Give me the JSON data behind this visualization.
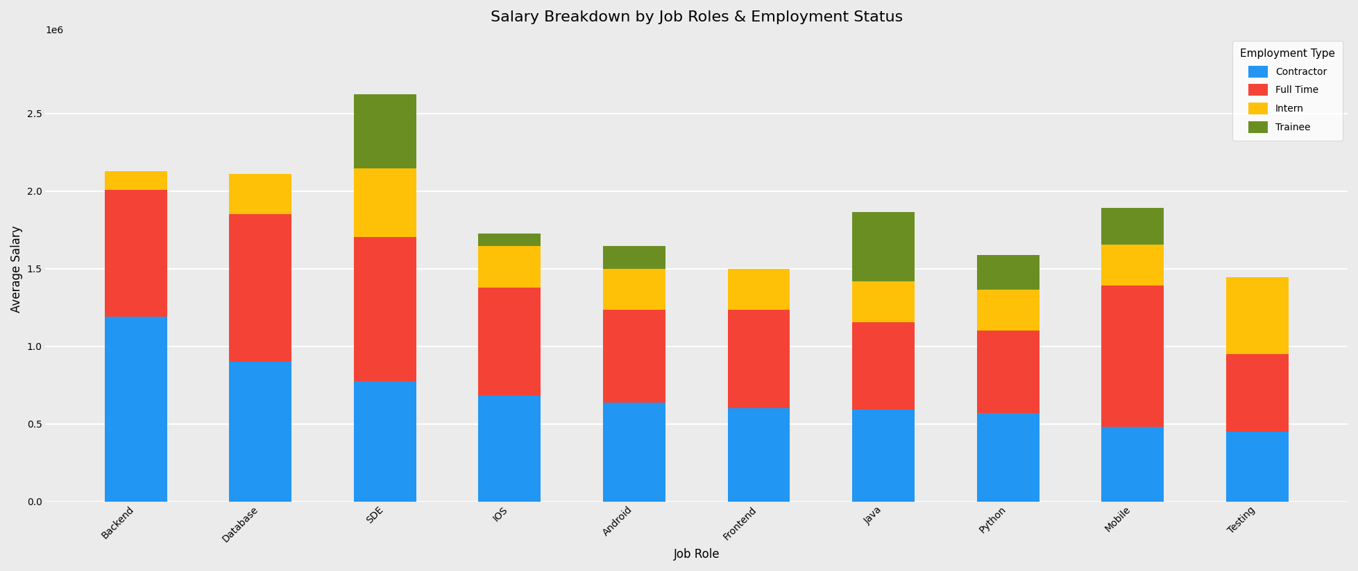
{
  "title": "Salary Breakdown by Job Roles & Employment Status",
  "xlabel": "Job Role",
  "ylabel": "Average Salary",
  "legend_title": "Employment Type",
  "categories": [
    "Backend",
    "Database",
    "SDE",
    "IOS",
    "Android",
    "Frontend",
    "Java",
    "Python",
    "Mobile",
    "Testing"
  ],
  "series": {
    "Contractor": [
      1190000,
      900000,
      775000,
      680000,
      635000,
      600000,
      590000,
      570000,
      480000,
      450000
    ],
    "Full Time": [
      820000,
      950000,
      930000,
      700000,
      600000,
      635000,
      565000,
      530000,
      910000,
      500000
    ],
    "Intern": [
      120000,
      260000,
      440000,
      265000,
      265000,
      265000,
      265000,
      265000,
      265000,
      495000
    ],
    "Trainee": [
      0,
      0,
      480000,
      80000,
      145000,
      0,
      445000,
      225000,
      235000,
      0
    ]
  },
  "colors": {
    "Contractor": "#2196F3",
    "Full Time": "#F44336",
    "Intern": "#FFC107",
    "Trainee": "#6B8E23"
  },
  "background_color": "#EBEBEB",
  "ylim": [
    0,
    3000000
  ],
  "yticks": [
    0,
    500000,
    1000000,
    1500000,
    2000000,
    2500000
  ],
  "figsize": [
    19.57,
    8.24
  ],
  "dpi": 100,
  "bar_width": 0.5
}
